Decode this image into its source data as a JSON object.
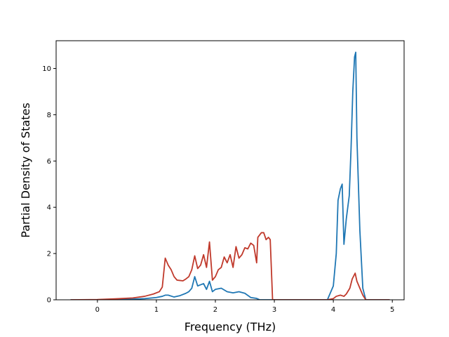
{
  "chart_data": {
    "type": "line",
    "xlabel": "Frequency (THz)",
    "ylabel": "Partial Density of States",
    "xlim": [
      -0.7,
      5.2
    ],
    "ylim": [
      0,
      11.2
    ],
    "x_ticks": [
      0,
      1,
      2,
      3,
      4,
      5
    ],
    "y_ticks": [
      0,
      2,
      4,
      6,
      8,
      10
    ],
    "grid": false,
    "series": [
      {
        "color": "#1f77b4",
        "points": [
          [
            -0.45,
            0
          ],
          [
            0,
            0
          ],
          [
            0.4,
            0.01
          ],
          [
            0.8,
            0.05
          ],
          [
            1.0,
            0.1
          ],
          [
            1.1,
            0.15
          ],
          [
            1.15,
            0.2
          ],
          [
            1.2,
            0.2
          ],
          [
            1.3,
            0.12
          ],
          [
            1.4,
            0.18
          ],
          [
            1.5,
            0.28
          ],
          [
            1.55,
            0.35
          ],
          [
            1.6,
            0.5
          ],
          [
            1.65,
            1.0
          ],
          [
            1.7,
            0.6
          ],
          [
            1.75,
            0.65
          ],
          [
            1.8,
            0.7
          ],
          [
            1.85,
            0.45
          ],
          [
            1.9,
            0.8
          ],
          [
            1.95,
            0.35
          ],
          [
            2.0,
            0.45
          ],
          [
            2.1,
            0.5
          ],
          [
            2.2,
            0.35
          ],
          [
            2.3,
            0.3
          ],
          [
            2.4,
            0.35
          ],
          [
            2.5,
            0.28
          ],
          [
            2.6,
            0.1
          ],
          [
            2.7,
            0.06
          ],
          [
            2.75,
            0
          ],
          [
            3.5,
            0
          ],
          [
            3.9,
            0
          ],
          [
            4.0,
            0.6
          ],
          [
            4.05,
            2.0
          ],
          [
            4.08,
            4.3
          ],
          [
            4.12,
            4.8
          ],
          [
            4.15,
            5.0
          ],
          [
            4.18,
            2.4
          ],
          [
            4.22,
            3.5
          ],
          [
            4.27,
            4.5
          ],
          [
            4.3,
            6.5
          ],
          [
            4.33,
            9.0
          ],
          [
            4.36,
            10.5
          ],
          [
            4.38,
            10.7
          ],
          [
            4.4,
            7.0
          ],
          [
            4.45,
            3.0
          ],
          [
            4.5,
            0.5
          ],
          [
            4.55,
            0
          ],
          [
            4.95,
            0
          ]
        ]
      },
      {
        "color": "#c0392b",
        "points": [
          [
            -0.45,
            0
          ],
          [
            0,
            0.01
          ],
          [
            0.3,
            0.04
          ],
          [
            0.6,
            0.08
          ],
          [
            0.8,
            0.15
          ],
          [
            0.95,
            0.25
          ],
          [
            1.05,
            0.35
          ],
          [
            1.1,
            0.55
          ],
          [
            1.15,
            1.8
          ],
          [
            1.2,
            1.5
          ],
          [
            1.25,
            1.3
          ],
          [
            1.3,
            1.0
          ],
          [
            1.35,
            0.85
          ],
          [
            1.45,
            0.82
          ],
          [
            1.5,
            0.9
          ],
          [
            1.55,
            1.0
          ],
          [
            1.6,
            1.3
          ],
          [
            1.65,
            1.9
          ],
          [
            1.7,
            1.35
          ],
          [
            1.75,
            1.5
          ],
          [
            1.8,
            1.95
          ],
          [
            1.85,
            1.4
          ],
          [
            1.9,
            2.5
          ],
          [
            1.95,
            0.85
          ],
          [
            2.0,
            1.0
          ],
          [
            2.05,
            1.3
          ],
          [
            2.1,
            1.4
          ],
          [
            2.15,
            1.85
          ],
          [
            2.2,
            1.6
          ],
          [
            2.25,
            1.95
          ],
          [
            2.3,
            1.4
          ],
          [
            2.35,
            2.3
          ],
          [
            2.4,
            1.8
          ],
          [
            2.45,
            1.95
          ],
          [
            2.5,
            2.25
          ],
          [
            2.55,
            2.2
          ],
          [
            2.6,
            2.45
          ],
          [
            2.65,
            2.35
          ],
          [
            2.7,
            1.6
          ],
          [
            2.72,
            2.7
          ],
          [
            2.78,
            2.9
          ],
          [
            2.82,
            2.9
          ],
          [
            2.86,
            2.6
          ],
          [
            2.9,
            2.7
          ],
          [
            2.93,
            2.6
          ],
          [
            2.97,
            0
          ],
          [
            3.5,
            0
          ],
          [
            3.9,
            0
          ],
          [
            4.0,
            0.05
          ],
          [
            4.05,
            0.15
          ],
          [
            4.12,
            0.2
          ],
          [
            4.18,
            0.15
          ],
          [
            4.22,
            0.25
          ],
          [
            4.28,
            0.5
          ],
          [
            4.32,
            0.9
          ],
          [
            4.37,
            1.15
          ],
          [
            4.4,
            0.8
          ],
          [
            4.45,
            0.5
          ],
          [
            4.5,
            0.2
          ],
          [
            4.55,
            0
          ],
          [
            4.95,
            0
          ]
        ]
      }
    ]
  }
}
